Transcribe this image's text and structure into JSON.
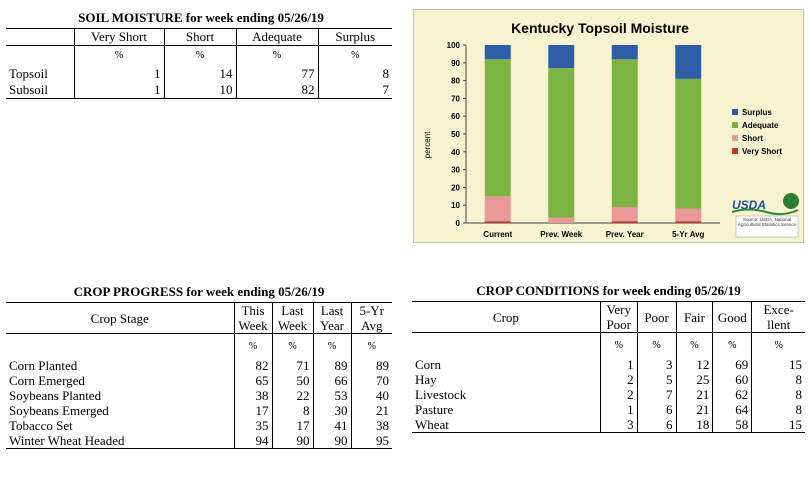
{
  "soil_moisture": {
    "title": "SOIL MOISTURE for week ending 05/26/19",
    "columns": [
      "Very Short",
      "Short",
      "Adequate",
      "Surplus"
    ],
    "unit_row": [
      "%",
      "%",
      "%",
      "%"
    ],
    "rows": [
      {
        "label": "Topsoil",
        "values": [
          "1",
          "14",
          "77",
          "8"
        ]
      },
      {
        "label": "Subsoil",
        "values": [
          "1",
          "10",
          "82",
          "7"
        ]
      }
    ]
  },
  "crop_progress": {
    "title": "CROP PROGRESS for week ending 05/26/19",
    "header_label": "Crop Stage",
    "columns": [
      {
        "line1": "This",
        "line2": "Week"
      },
      {
        "line1": "Last",
        "line2": "Week"
      },
      {
        "line1": "Last",
        "line2": "Year"
      },
      {
        "line1": "5-Yr",
        "line2": "Avg"
      }
    ],
    "unit_row": [
      "%",
      "%",
      "%",
      "%"
    ],
    "rows": [
      {
        "label": "Corn Planted",
        "values": [
          "82",
          "71",
          "89",
          "89"
        ]
      },
      {
        "label": "Corn Emerged",
        "values": [
          "65",
          "50",
          "66",
          "70"
        ]
      },
      {
        "label": "Soybeans Planted",
        "values": [
          "38",
          "22",
          "53",
          "40"
        ]
      },
      {
        "label": "Soybeans Emerged",
        "values": [
          "17",
          "8",
          "30",
          "21"
        ]
      },
      {
        "label": "Tobacco Set",
        "values": [
          "35",
          "17",
          "41",
          "38"
        ]
      },
      {
        "label": "Winter Wheat Headed",
        "values": [
          "94",
          "90",
          "90",
          "95"
        ]
      }
    ]
  },
  "crop_conditions": {
    "title": "CROP CONDITIONS for week ending 05/26/19",
    "header_label": "Crop",
    "columns": [
      {
        "line1": "Very",
        "line2": "Poor"
      },
      {
        "line1": "Poor",
        "line2": ""
      },
      {
        "line1": "Fair",
        "line2": ""
      },
      {
        "line1": "Good",
        "line2": ""
      },
      {
        "line1": "Exce-",
        "line2": "llent"
      }
    ],
    "unit_row": [
      "%",
      "%",
      "%",
      "%",
      "%"
    ],
    "rows": [
      {
        "label": "Corn",
        "values": [
          "1",
          "3",
          "12",
          "69",
          "15"
        ]
      },
      {
        "label": "Hay",
        "values": [
          "2",
          "5",
          "25",
          "60",
          "8"
        ]
      },
      {
        "label": "Livestock",
        "values": [
          "2",
          "7",
          "21",
          "62",
          "8"
        ]
      },
      {
        "label": "Pasture",
        "values": [
          "1",
          "6",
          "21",
          "64",
          "8"
        ]
      },
      {
        "label": "Wheat",
        "values": [
          "3",
          "6",
          "18",
          "58",
          "15"
        ]
      }
    ]
  },
  "chart_data": {
    "type": "bar",
    "stacked": true,
    "title": "Kentucky Topsoil Moisture",
    "ylabel": "percent",
    "ylim": [
      0,
      100
    ],
    "yticks": [
      "0",
      "10",
      "20",
      "30",
      "40",
      "50",
      "60",
      "70",
      "80",
      "90",
      "100"
    ],
    "categories": [
      "Current",
      "Prev. Week",
      "Prev. Year",
      "5-Yr Avg"
    ],
    "series": [
      {
        "name": "Very Short",
        "color": "#c0392b",
        "values": [
          1,
          0,
          1,
          1
        ]
      },
      {
        "name": "Short",
        "color": "#e89898",
        "values": [
          14,
          3,
          8,
          7
        ]
      },
      {
        "name": "Adequate",
        "color": "#7cb342",
        "values": [
          77,
          84,
          83,
          73
        ]
      },
      {
        "name": "Surplus",
        "color": "#2e5ea8",
        "values": [
          8,
          13,
          8,
          19
        ]
      }
    ],
    "legend_order": [
      "Surplus",
      "Adequate",
      "Short",
      "Very Short"
    ],
    "legend_position": "right",
    "logo_text": "USDA",
    "source_text": "Source: USDA, National Agricultural Statistics Service"
  }
}
